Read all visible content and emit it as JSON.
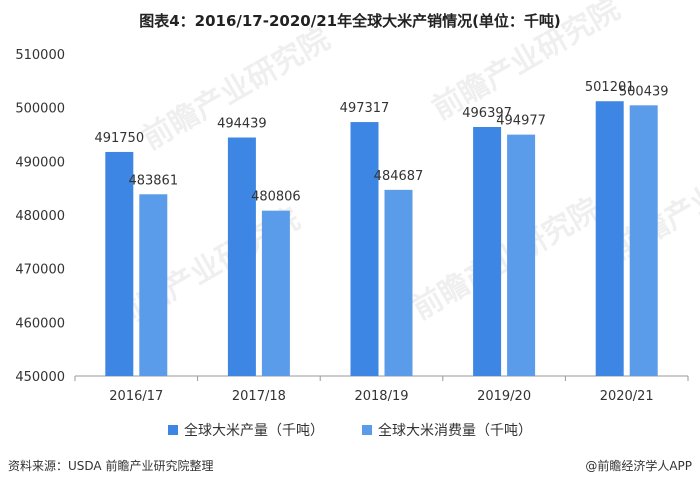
{
  "title": "图表4：2016/17-2020/21年全球大米产销情况(单位：千吨)",
  "source": "资料来源：USDA 前瞻产业研究院整理",
  "brand": "@前瞻经济学人APP",
  "watermark": "前瞻产业研究院",
  "colors": {
    "production": "#3e86e3",
    "consumption": "#5b9cea",
    "axis": "#999999",
    "grid": "#e6e6e6"
  },
  "chart_data": {
    "type": "bar",
    "title": "图表4：2016/17-2020/21年全球大米产销情况(单位：千吨)",
    "categories": [
      "2016/17",
      "2017/18",
      "2018/19",
      "2019/20",
      "2020/21"
    ],
    "series": [
      {
        "name": "全球大米产量（千吨）",
        "values": [
          491750,
          494439,
          497317,
          496397,
          501201
        ]
      },
      {
        "name": "全球大米消费量（千吨）",
        "values": [
          483861,
          480806,
          484687,
          494977,
          500439
        ]
      }
    ],
    "ylim": [
      450000,
      510000
    ],
    "yticks": [
      450000,
      460000,
      470000,
      480000,
      490000,
      500000,
      510000
    ],
    "grid": false,
    "legend": "bottom",
    "xlabel": "",
    "ylabel": ""
  }
}
